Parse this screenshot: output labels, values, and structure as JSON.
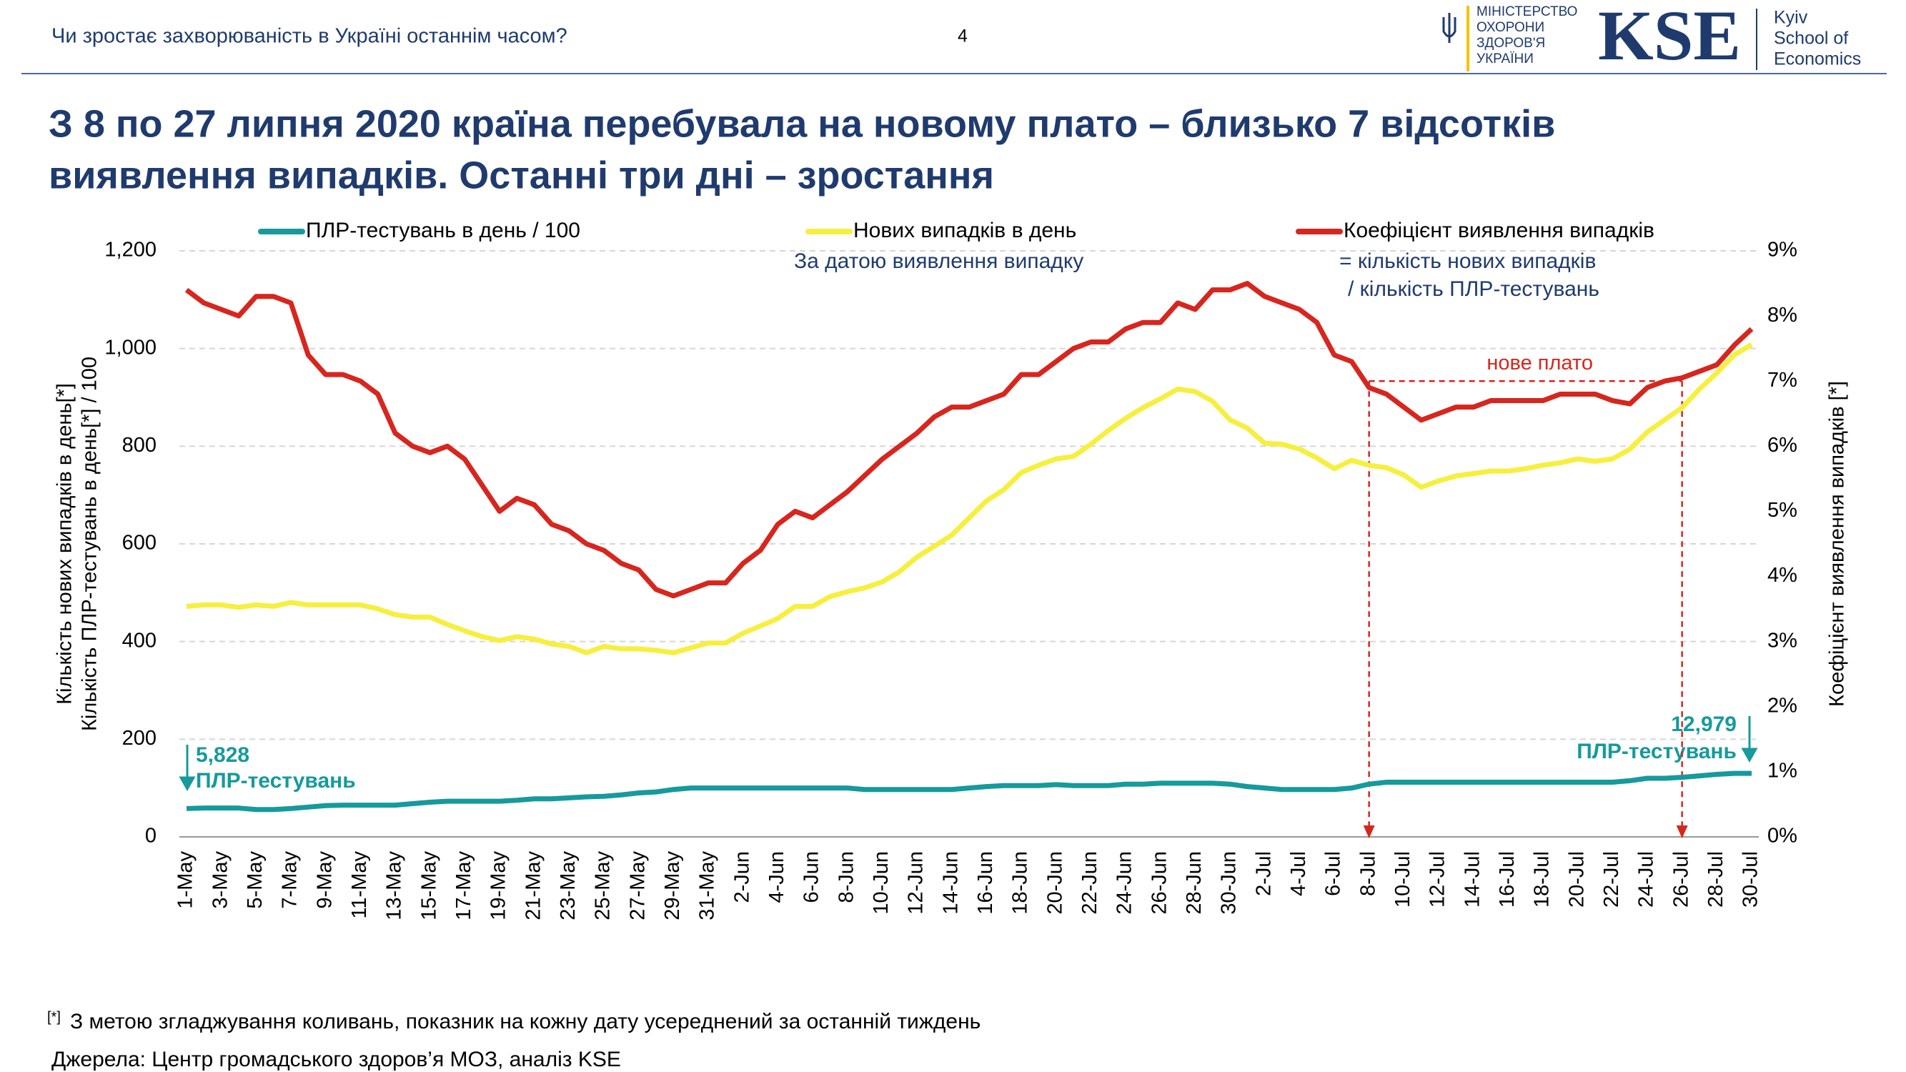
{
  "header": {
    "text": "Чи зростає захворюваність в Україні останнім часом?",
    "page": "4",
    "ministry": [
      "МІНІСТЕРСТВО",
      "ОХОРОНИ",
      "ЗДОРОВ'Я",
      "УКРАЇНИ"
    ],
    "kse_logo": "KSE",
    "kse_name": [
      "Kyiv",
      "School of",
      "Economics"
    ]
  },
  "chart_data": {
    "type": "line",
    "title": [
      "З 8 по 27 липня 2020 країна перебувала на новому плато – близько 7 відсотків",
      "виявлення випадків. Останні три дні – зростання"
    ],
    "ylabel": [
      "Кількість нових випадків в день[*]",
      "Кількість ПЛР-тестувань в день[*] / 100"
    ],
    "y2label": "Коефіцієнт виявлення випадків [*]",
    "categories": [
      "1-May",
      null,
      "3-May",
      null,
      "5-May",
      null,
      "7-May",
      null,
      "9-May",
      null,
      "11-May",
      null,
      "13-May",
      null,
      "15-May",
      null,
      "17-May",
      null,
      "19-May",
      null,
      "21-May",
      null,
      "23-May",
      null,
      "25-May",
      null,
      "27-May",
      null,
      "29-May",
      null,
      "31-May",
      null,
      "2-Jun",
      null,
      "4-Jun",
      null,
      "6-Jun",
      null,
      "8-Jun",
      null,
      "10-Jun",
      null,
      "12-Jun",
      null,
      "14-Jun",
      null,
      "16-Jun",
      null,
      "18-Jun",
      null,
      "20-Jun",
      null,
      "22-Jun",
      null,
      "24-Jun",
      null,
      "26-Jun",
      null,
      "28-Jun",
      null,
      "30-Jun",
      null,
      "2-Jul",
      null,
      "4-Jul",
      null,
      "6-Jul",
      null,
      "8-Jul",
      null,
      "10-Jul",
      null,
      "12-Jul",
      null,
      "14-Jul",
      null,
      "16-Jul",
      null,
      "18-Jul",
      null,
      "20-Jul",
      null,
      "22-Jul",
      null,
      "24-Jul",
      null,
      "26-Jul",
      null,
      "28-Jul",
      null,
      "30-Jul"
    ],
    "series": [
      {
        "name": "ПЛР-тестувань в день / 100",
        "color": "#169a9c",
        "axis": "y",
        "values": [
          58,
          59,
          59,
          59,
          56,
          56,
          58,
          61,
          64,
          65,
          65,
          65,
          65,
          68,
          71,
          73,
          73,
          73,
          73,
          75,
          78,
          78,
          80,
          82,
          83,
          86,
          90,
          92,
          97,
          100,
          100,
          100,
          100,
          100,
          100,
          100,
          100,
          100,
          100,
          97,
          97,
          97,
          97,
          97,
          97,
          100,
          103,
          105,
          105,
          105,
          107,
          105,
          105,
          105,
          108,
          108,
          110,
          110,
          110,
          110,
          108,
          103,
          100,
          97,
          97,
          97,
          97,
          100,
          108,
          112,
          112,
          112,
          112,
          112,
          112,
          112,
          112,
          112,
          112,
          112,
          112,
          112,
          112,
          115,
          120,
          120,
          122,
          125,
          128,
          130,
          130
        ]
      },
      {
        "name": "Нових випадків в день",
        "color": "#f7ef3f",
        "axis": "y",
        "values": [
          472,
          475,
          475,
          470,
          475,
          472,
          480,
          475,
          475,
          475,
          475,
          467,
          455,
          450,
          450,
          435,
          422,
          410,
          402,
          410,
          405,
          395,
          390,
          377,
          390,
          385,
          385,
          382,
          377,
          387,
          397,
          397,
          417,
          432,
          447,
          472,
          472,
          492,
          502,
          510,
          522,
          543,
          573,
          595,
          618,
          653,
          688,
          711,
          746,
          761,
          774,
          779,
          804,
          832,
          857,
          879,
          897,
          917,
          912,
          892,
          854,
          837,
          806,
          804,
          794,
          776,
          754,
          771,
          761,
          756,
          741,
          716,
          729,
          739,
          744,
          749,
          749,
          754,
          761,
          766,
          774,
          769,
          774,
          794,
          829,
          854,
          879,
          917,
          950,
          987,
          1008
        ]
      },
      {
        "name": "Коефіцієнт виявлення випадків",
        "color": "#d7261e",
        "axis": "y2",
        "values": [
          8.4,
          8.2,
          8.1,
          8.0,
          8.3,
          8.3,
          8.2,
          7.4,
          7.1,
          7.1,
          7.0,
          6.8,
          6.2,
          6.0,
          5.9,
          6.0,
          5.8,
          5.4,
          5.0,
          5.2,
          5.1,
          4.8,
          4.7,
          4.5,
          4.4,
          4.2,
          4.1,
          3.8,
          3.7,
          3.8,
          3.9,
          3.9,
          4.2,
          4.4,
          4.8,
          5.0,
          4.9,
          5.1,
          5.3,
          5.55,
          5.8,
          6.0,
          6.2,
          6.45,
          6.6,
          6.6,
          6.7,
          6.8,
          7.1,
          7.1,
          7.3,
          7.5,
          7.6,
          7.6,
          7.8,
          7.9,
          7.9,
          8.2,
          8.1,
          8.4,
          8.4,
          8.5,
          8.3,
          8.2,
          8.1,
          7.9,
          7.4,
          7.3,
          6.9,
          6.8,
          6.6,
          6.4,
          6.5,
          6.6,
          6.6,
          6.7,
          6.7,
          6.7,
          6.7,
          6.8,
          6.8,
          6.8,
          6.7,
          6.65,
          6.9,
          7.0,
          7.05,
          7.15,
          7.25,
          7.55,
          7.8
        ]
      }
    ],
    "ylim": [
      0,
      1200
    ],
    "yticks": [
      0,
      200,
      400,
      600,
      800,
      {
        "value": 1000,
        "label": "1,000"
      },
      {
        "value": 1200,
        "label": "1,200"
      }
    ],
    "y2lim": [
      0,
      9
    ],
    "y2ticks": [
      {
        "value": 0,
        "label": "0%"
      },
      {
        "value": 1,
        "label": "1%"
      },
      {
        "value": 2,
        "label": "2%"
      },
      {
        "value": 3,
        "label": "3%"
      },
      {
        "value": 4,
        "label": "4%"
      },
      {
        "value": 5,
        "label": "5%"
      },
      {
        "value": 6,
        "label": "6%"
      },
      {
        "value": 7,
        "label": "7%"
      },
      {
        "value": 8,
        "label": "8%"
      },
      {
        "value": 9,
        "label": "9%"
      }
    ],
    "grid": true,
    "legend": "top",
    "annotations": {
      "cases_note": "За датою виявлення випадку",
      "ratio_note": [
        "= кількість нових випадків",
        "/ кількість ПЛР-тестувань"
      ],
      "tests_start": [
        "5,828",
        "ПЛР-тестувань"
      ],
      "tests_end": [
        "12,979",
        "ПЛР-тестувань"
      ],
      "plateau": {
        "label": "нове плато",
        "from": "8-Jul",
        "to": "26-Jul",
        "level": 7
      }
    }
  },
  "footer": {
    "marker": "[*]",
    "note": "З метою згладжування коливань, показник на кожну дату усереднений за останній тиждень",
    "source": "Джерела: Центр громадського здоров’я МОЗ, аналіз KSE"
  }
}
